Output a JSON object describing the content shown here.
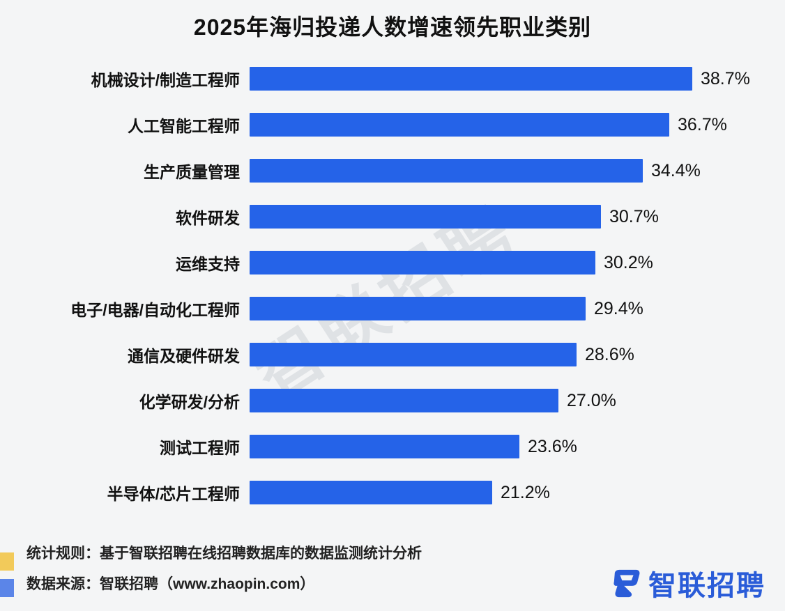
{
  "title": "2025年海归投递人数增速领先职业类别",
  "chart_data": {
    "type": "bar",
    "orientation": "horizontal",
    "title": "2025年海归投递人数增速领先职业类别",
    "categories": [
      "机械设计/制造工程师",
      "人工智能工程师",
      "生产质量管理",
      "软件研发",
      "运维支持",
      "电子/电器/自动化工程师",
      "通信及硬件研发",
      "化学研发/分析",
      "测试工程师",
      "半导体/芯片工程师"
    ],
    "values": [
      38.7,
      36.7,
      34.4,
      30.7,
      30.2,
      29.4,
      28.6,
      27.0,
      23.6,
      21.2
    ],
    "value_labels": [
      "38.7%",
      "36.7%",
      "34.4%",
      "30.7%",
      "30.2%",
      "29.4%",
      "28.6%",
      "27.0%",
      "23.6%",
      "21.2%"
    ],
    "xlim": [
      0,
      40
    ],
    "bar_color": "#2563e8",
    "grid": false,
    "legend": "none"
  },
  "watermark": "智联招聘",
  "footer": {
    "line1": "统计规则：基于智联招聘在线招聘数据库的数据监测统计分析",
    "line2": "数据来源：智联招聘（www.zhaopin.com）"
  },
  "logo": {
    "text": "智联招聘",
    "color": "#2a5cd8"
  },
  "colors": {
    "background": "#f4f5f6",
    "bar": "#2563e8",
    "accent_yellow": "#f2ca5a",
    "accent_blue": "#5b85e8"
  }
}
